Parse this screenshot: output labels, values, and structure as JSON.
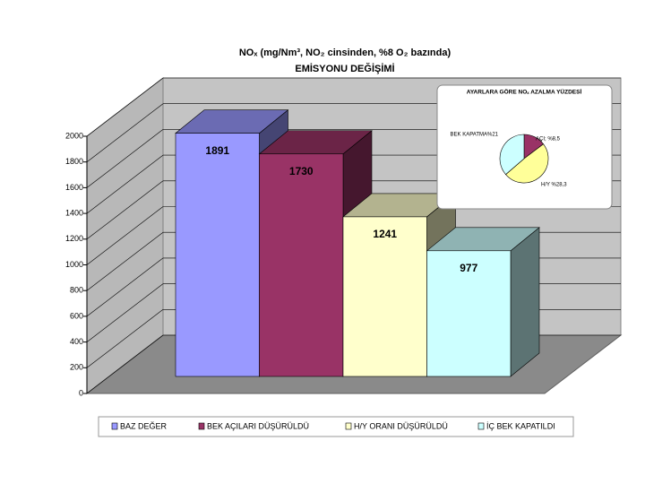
{
  "chart_data": [
    {
      "type": "bar3d",
      "title": "NOₓ (mg/Nm³, NO₂ cinsinden, %8 O₂ bazında)",
      "subtitle": "EMİSYONU DEĞİŞİMİ",
      "series": [
        {
          "name": "BAZ DEĞER",
          "color": "#9999ff",
          "values": [
            1891
          ]
        },
        {
          "name": "BEK AÇILARI DÜŞÜRÜLDÜ",
          "color": "#993366",
          "values": [
            1730
          ]
        },
        {
          "name": "H/Y ORANI DÜŞÜRÜLDÜ",
          "color": "#ffffcc",
          "values": [
            1241
          ]
        },
        {
          "name": "İÇ BEK KAPATILDI",
          "color": "#ccffff",
          "values": [
            977
          ]
        }
      ],
      "ylim": [
        0,
        2000
      ],
      "yticks": [
        0,
        200,
        400,
        600,
        800,
        1000,
        1200,
        1400,
        1600,
        1800,
        2000
      ],
      "grid": true,
      "legend": "bottom"
    },
    {
      "type": "pie",
      "title": "AYARLARA GÖRE NOₓ AZALMA YÜZDESİ",
      "values": [
        8.5,
        28.3,
        21
      ],
      "value_labels": [
        "AÇI; %8,5",
        "H/Y %28,3",
        "BEK KAPATMA%21"
      ],
      "colors": [
        "#993366",
        "#ffff99",
        "#ccffff"
      ]
    }
  ]
}
